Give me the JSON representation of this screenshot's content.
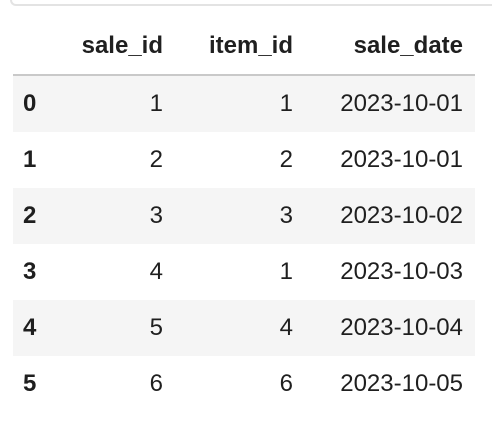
{
  "table": {
    "columns": [
      "",
      "sale_id",
      "item_id",
      "sale_date"
    ],
    "rows": [
      {
        "index": "0",
        "sale_id": "1",
        "item_id": "1",
        "sale_date": "2023-10-01"
      },
      {
        "index": "1",
        "sale_id": "2",
        "item_id": "2",
        "sale_date": "2023-10-01"
      },
      {
        "index": "2",
        "sale_id": "3",
        "item_id": "3",
        "sale_date": "2023-10-02"
      },
      {
        "index": "3",
        "sale_id": "4",
        "item_id": "1",
        "sale_date": "2023-10-03"
      },
      {
        "index": "4",
        "sale_id": "5",
        "item_id": "4",
        "sale_date": "2023-10-04"
      },
      {
        "index": "5",
        "sale_id": "6",
        "item_id": "6",
        "sale_date": "2023-10-05"
      }
    ]
  },
  "colors": {
    "stripe": "#f5f5f5",
    "header_rule": "#c9c9c9",
    "cell_border": "#e3e3e3"
  }
}
